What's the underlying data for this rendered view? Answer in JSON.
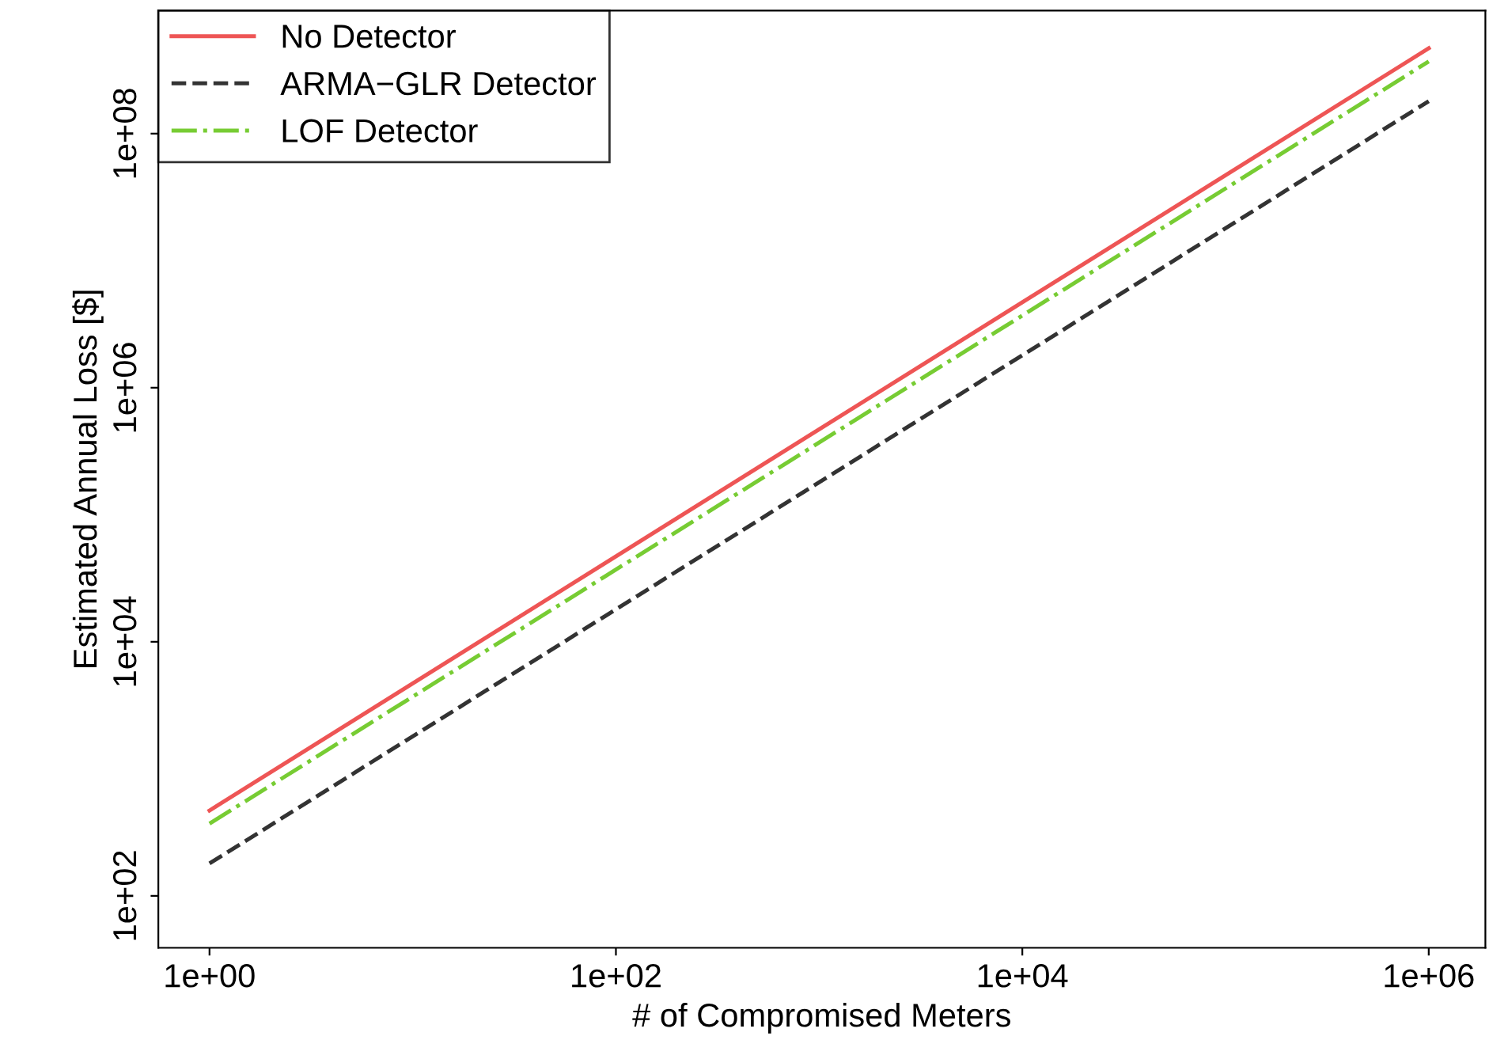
{
  "chart_data": {
    "type": "line",
    "xlabel": "# of Compromised Meters",
    "ylabel": "Estimated Annual Loss [$]",
    "log": "xy",
    "x": [
      1,
      1000000
    ],
    "series": [
      {
        "name": "No Detector",
        "color": "#ee5555",
        "line_style": "solid",
        "values": [
          470,
          470000000
        ]
      },
      {
        "name": "ARMA−GLR Detector",
        "color": "#333333",
        "line_style": "dashed",
        "values": [
          180,
          180000000
        ]
      },
      {
        "name": "LOF Detector",
        "color": "#77cc33",
        "line_style": "dashdot",
        "values": [
          370,
          370000000
        ]
      }
    ],
    "xlim": [
      0.56,
      1900000
    ],
    "ylim": [
      39,
      930000000
    ],
    "xticks": [
      {
        "value": 1,
        "label": "1e+00"
      },
      {
        "value": 100,
        "label": "1e+02"
      },
      {
        "value": 10000,
        "label": "1e+04"
      },
      {
        "value": 1000000,
        "label": "1e+06"
      }
    ],
    "yticks": [
      {
        "value": 100,
        "label": "1e+02"
      },
      {
        "value": 10000,
        "label": "1e+04"
      },
      {
        "value": 1000000,
        "label": "1e+06"
      },
      {
        "value": 100000000,
        "label": "1e+08"
      }
    ],
    "grid": false,
    "legend": "top left",
    "marker": "none"
  }
}
